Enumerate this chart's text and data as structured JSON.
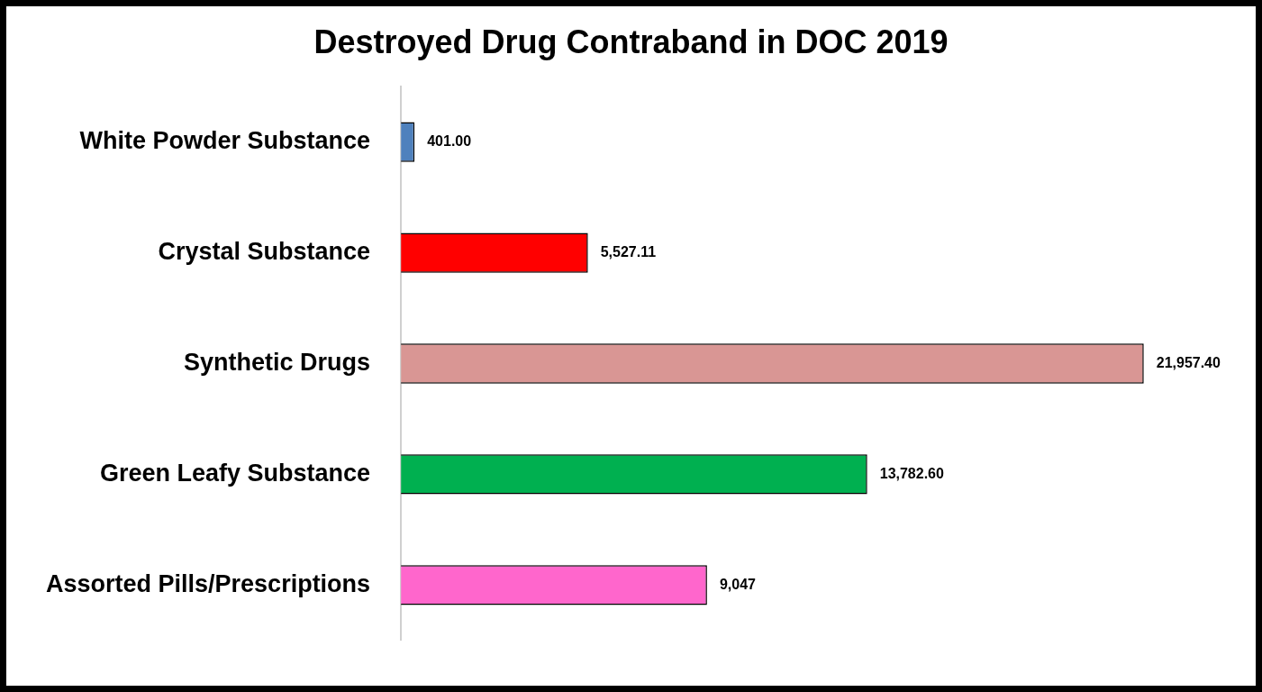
{
  "chart_data": {
    "type": "bar",
    "orientation": "horizontal",
    "title": "Destroyed Drug Contraband in DOC 2019",
    "categories": [
      "White Powder Substance",
      "Crystal Substance",
      "Synthetic Drugs",
      "Green Leafy Substance",
      "Assorted Pills/Prescriptions"
    ],
    "values": [
      401.0,
      5527.11,
      21957.4,
      13782.6,
      9047
    ],
    "colors": [
      "#4f81bd",
      "#ff0000",
      "#d99694",
      "#00b050",
      "#ff66cc"
    ],
    "value_labels": [
      "401.00",
      "5,527.11",
      "21,957.40",
      "13,782.60",
      "9,047"
    ],
    "tick_labels": "y",
    "grid": false,
    "legend": false
  }
}
